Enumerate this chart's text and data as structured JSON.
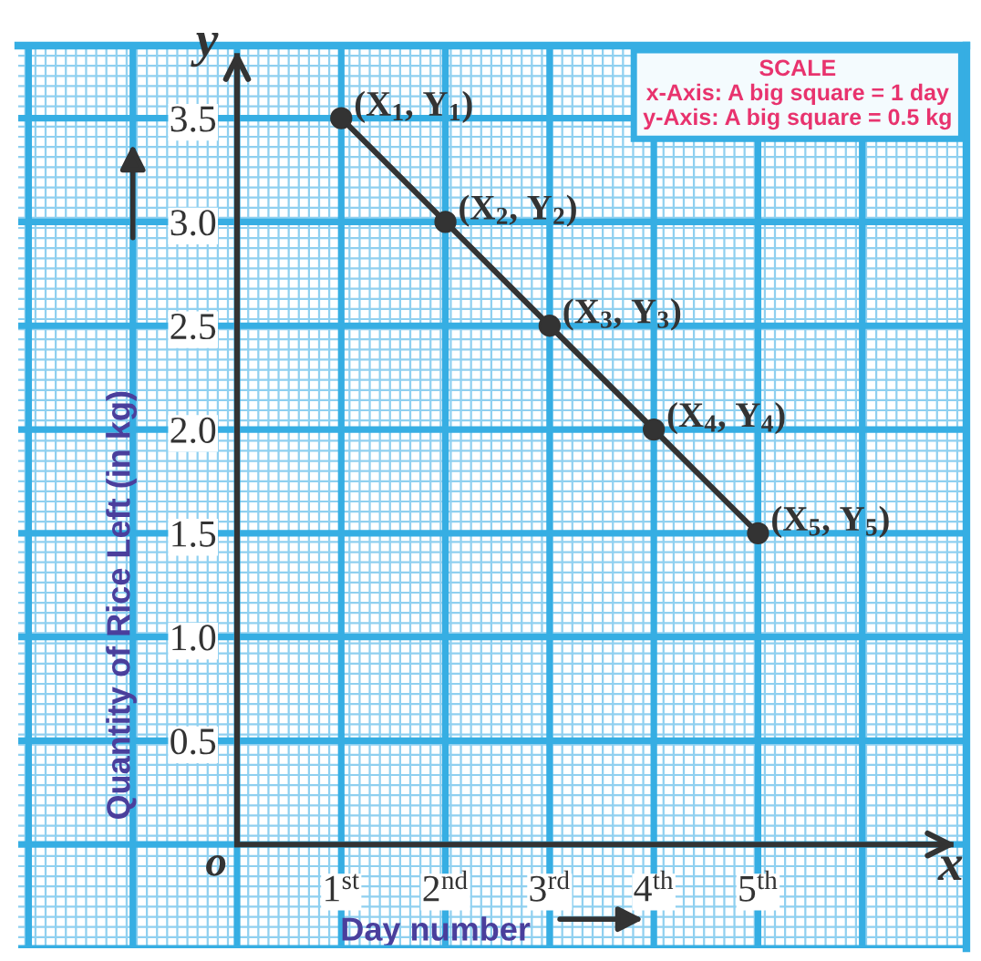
{
  "chart_data": {
    "type": "line",
    "xlabel": "Day number",
    "ylabel": "Quantity of Rice Left (in kg)",
    "x": [
      1,
      2,
      3,
      4,
      5
    ],
    "series": [
      {
        "color": "#333333",
        "values": [
          3.5,
          3.0,
          2.5,
          2.0,
          1.5
        ]
      }
    ],
    "marker": "circle",
    "line_style": "solid",
    "grid": true,
    "xlim": [
      -2.1,
      7
    ],
    "ylim": [
      -0.5,
      3.85
    ],
    "xticks": [
      {
        "value": -2,
        "label": null
      },
      {
        "value": -1,
        "label": null
      },
      {
        "value": 0,
        "label": null
      },
      {
        "value": 1,
        "label": "1$^{st}$"
      },
      {
        "value": 2,
        "label": "2$^{nd}$"
      },
      {
        "value": 3,
        "label": "3$^{rd}$"
      },
      {
        "value": 4,
        "label": "4$^{th}$"
      },
      {
        "value": 5,
        "label": "5$^{th}$"
      },
      {
        "value": 6,
        "label": null
      },
      {
        "value": 7,
        "label": null
      }
    ],
    "yticks": [
      {
        "value": -0.5,
        "label": null
      },
      {
        "value": 0,
        "label": null
      },
      0.5,
      {
        "value": 1,
        "label": "1.0"
      },
      1.5,
      {
        "value": 2,
        "label": "2.0"
      },
      2.5,
      {
        "value": 3,
        "label": "3.0"
      },
      3.5
    ],
    "annotations": [
      "x",
      "y",
      "o",
      "SCALE",
      "x-Axis: A big square = 1 day",
      "y-Axis: A big square = 0.5 kg",
      {
        "text": "(X$_{1}$, Y$_{1}$)",
        "x": 1,
        "y": 3.5
      },
      {
        "text": "(X$_{2}$, Y$_{2}$)",
        "x": 2,
        "y": 3.0
      },
      {
        "text": "(X$_{3}$, Y$_{3}$)",
        "x": 3,
        "y": 2.5
      },
      {
        "text": "(X$_{4}$, Y$_{4}$)",
        "x": 4,
        "y": 2.0
      },
      {
        "text": "(X$_{5}$, Y$_{5}$)",
        "x": 5,
        "y": 1.5
      }
    ]
  }
}
